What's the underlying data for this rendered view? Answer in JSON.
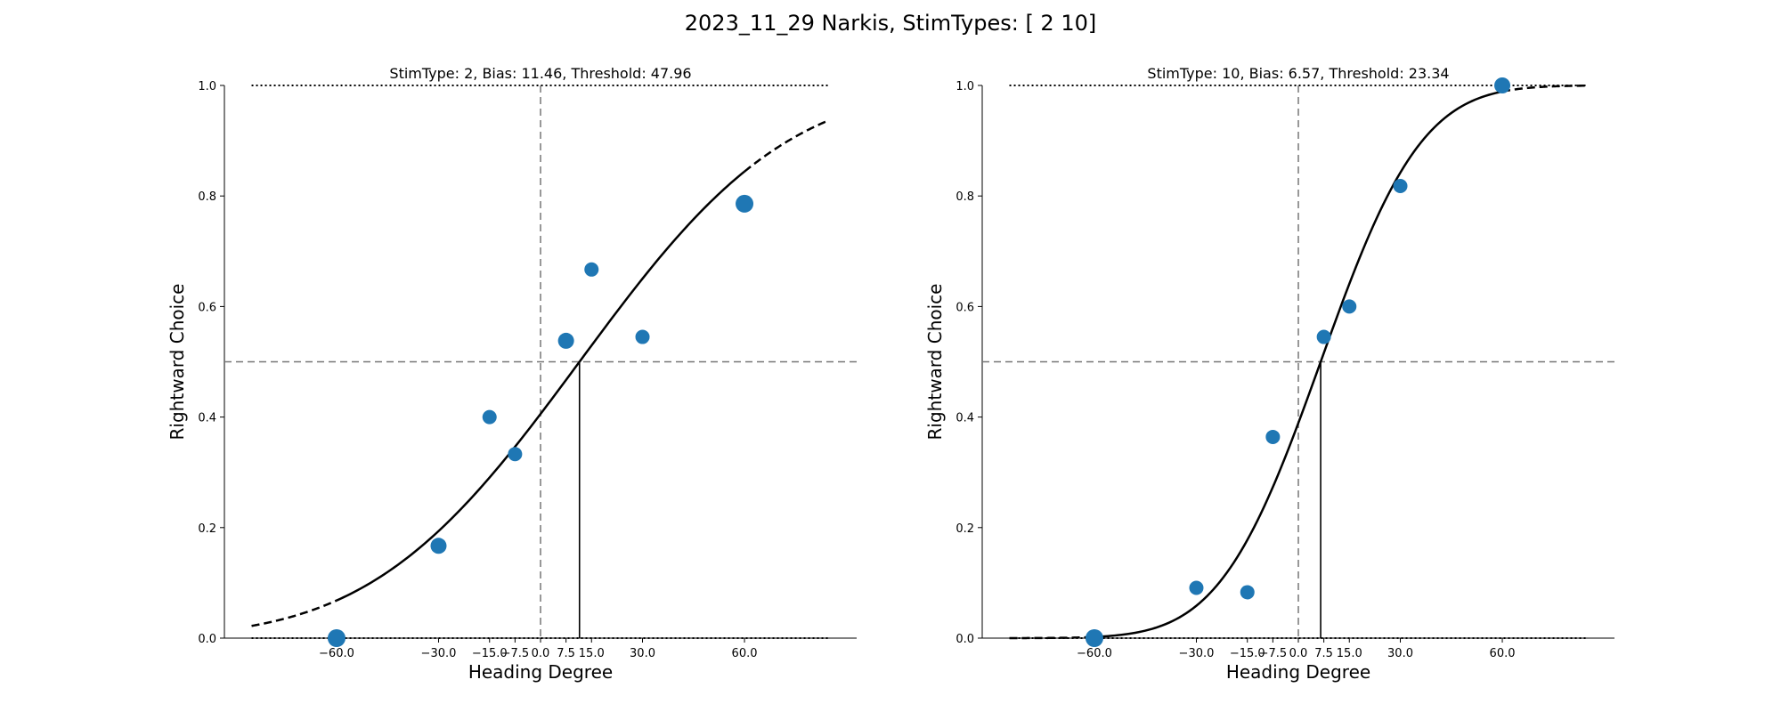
{
  "figure": {
    "suptitle": "2023_11_29 Narkis, StimTypes: [ 2 10]"
  },
  "chart_data": [
    {
      "type": "scatter",
      "title": "StimType: 2, Bias: 11.46, Threshold: 47.96",
      "xlabel": "Heading Degree",
      "ylabel": "Rightward Choice",
      "xlim": [
        -93,
        93
      ],
      "ylim": [
        0,
        1
      ],
      "xticks": [
        -60,
        -30,
        -15,
        -7.5,
        0,
        7.5,
        15,
        30,
        60
      ],
      "xtick_labels": [
        "−60.0",
        "−30.0",
        "−15.0",
        "−7.5",
        "0.0",
        "7.5",
        "15.0",
        "30.0",
        "60.0"
      ],
      "yticks": [
        0,
        0.2,
        0.4,
        0.6,
        0.8,
        1.0
      ],
      "ytick_labels": [
        "0.0",
        "0.2",
        "0.4",
        "0.6",
        "0.8",
        "1.0"
      ],
      "points": {
        "x": [
          -60,
          -30,
          -15,
          -7.5,
          7.5,
          15,
          30,
          60
        ],
        "y": [
          0.0,
          0.167,
          0.4,
          0.333,
          0.538,
          0.667,
          0.545,
          0.786
        ],
        "size": [
          10,
          9,
          8,
          8,
          9,
          8,
          8,
          10
        ],
        "color": "#1f77b4"
      },
      "fit": {
        "type": "cumulative_gaussian",
        "bias": 11.46,
        "sigma": 47.96,
        "x_range": [
          -85,
          85
        ],
        "solid_range": [
          -60,
          60
        ]
      },
      "reference_lines": {
        "h": 0.5,
        "v": 0
      }
    },
    {
      "type": "scatter",
      "title": "StimType: 10, Bias: 6.57, Threshold: 23.34",
      "xlabel": "Heading Degree",
      "ylabel": "Rightward Choice",
      "xlim": [
        -93,
        93
      ],
      "ylim": [
        0,
        1
      ],
      "xticks": [
        -60,
        -30,
        -15,
        -7.5,
        0,
        7.5,
        15,
        30,
        60
      ],
      "xtick_labels": [
        "−60.0",
        "−30.0",
        "−15.0",
        "−7.5",
        "0.0",
        "7.5",
        "15.0",
        "30.0",
        "60.0"
      ],
      "yticks": [
        0,
        0.2,
        0.4,
        0.6,
        0.8,
        1.0
      ],
      "ytick_labels": [
        "0.0",
        "0.2",
        "0.4",
        "0.6",
        "0.8",
        "1.0"
      ],
      "points": {
        "x": [
          -60,
          -30,
          -15,
          -7.5,
          7.5,
          15,
          30,
          60
        ],
        "y": [
          0.0,
          0.091,
          0.083,
          0.364,
          0.545,
          0.6,
          0.818,
          1.0
        ],
        "size": [
          10,
          8,
          8,
          8,
          8,
          8,
          8,
          9
        ],
        "color": "#1f77b4"
      },
      "fit": {
        "type": "cumulative_gaussian",
        "bias": 6.57,
        "sigma": 23.34,
        "x_range": [
          -85,
          85
        ],
        "solid_range": [
          -60,
          60
        ]
      },
      "reference_lines": {
        "h": 0.5,
        "v": 0
      }
    }
  ]
}
